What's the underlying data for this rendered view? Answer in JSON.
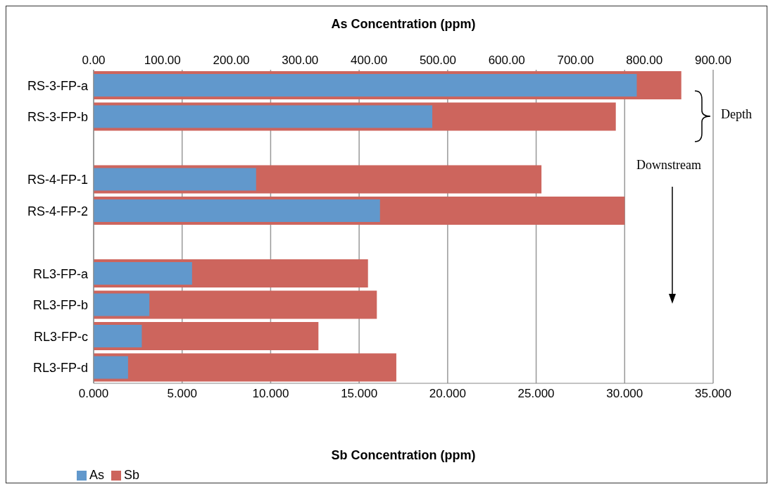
{
  "chart_data": {
    "type": "bar",
    "orientation": "horizontal",
    "xlabel": "Sb  Concentration (ppm)",
    "x2label": "As Concentration  (ppm)",
    "categories": [
      "RS-3-FP-a",
      "RS-3-FP-b",
      null,
      "RS-4-FP-1",
      "RS-4-FP-2",
      null,
      "RL3-FP-a",
      "RL3-FP-b",
      "RL3-FP-c",
      "RL3-FP-d"
    ],
    "series": [
      {
        "name": "Sb",
        "color": "#cd655d",
        "values": [
          33.2,
          29.5,
          null,
          25.3,
          30.0,
          null,
          15.5,
          16.0,
          12.7,
          17.1
        ]
      },
      {
        "name": "As",
        "color": "#6198cc",
        "axis": "x2",
        "values": [
          789,
          492,
          null,
          236,
          416,
          null,
          143,
          81,
          70,
          50
        ]
      }
    ],
    "xlim": [
      0,
      35
    ],
    "xticks": [
      {
        "value": 0,
        "label": "0.000"
      },
      {
        "value": 5,
        "label": "5.000"
      },
      {
        "value": 10,
        "label": "10.000"
      },
      {
        "value": 15,
        "label": "15.000"
      },
      {
        "value": 20,
        "label": "20.000"
      },
      {
        "value": 25,
        "label": "25.000"
      },
      {
        "value": 30,
        "label": "30.000"
      },
      {
        "value": 35,
        "label": "35.000"
      }
    ],
    "x2lim": [
      0,
      900
    ],
    "x2ticks": [
      {
        "value": 0,
        "label": "0.00"
      },
      {
        "value": 100,
        "label": "100.00"
      },
      {
        "value": 200,
        "label": "200.00"
      },
      {
        "value": 300,
        "label": "300.00"
      },
      {
        "value": 400,
        "label": "400.00"
      },
      {
        "value": 500,
        "label": "500.00"
      },
      {
        "value": 600,
        "label": "600.00"
      },
      {
        "value": 700,
        "label": "700.00"
      },
      {
        "value": 800,
        "label": "800.00"
      },
      {
        "value": 900,
        "label": "900.00"
      }
    ],
    "grid": "x",
    "legend": "bottom left",
    "annotations": [
      "Depth",
      "Downstream"
    ]
  }
}
